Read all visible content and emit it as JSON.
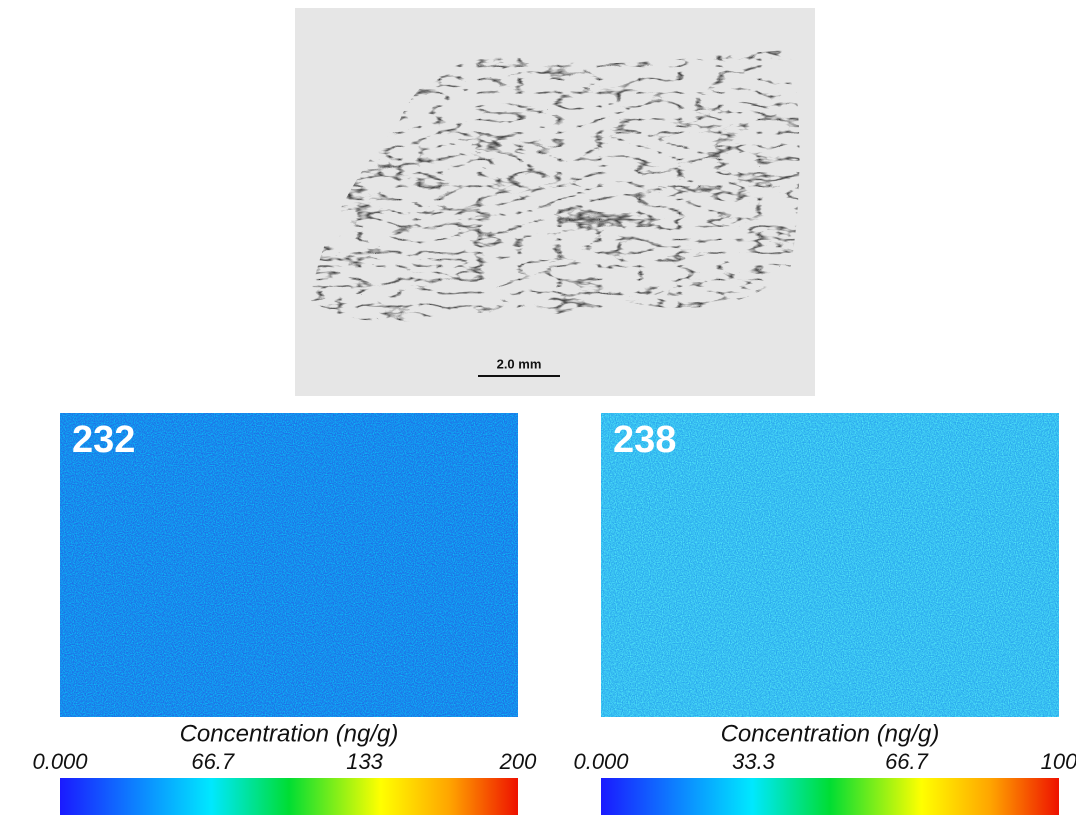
{
  "micrograph": {
    "scale_bar": "2.0 mm"
  },
  "panels": [
    {
      "label": "232",
      "colorbar": {
        "title": "Concentration (ng/g)",
        "lim": [
          0,
          200
        ],
        "ticks": [
          {
            "value": 0,
            "label": "0.000"
          },
          66.7,
          133,
          200
        ]
      }
    },
    {
      "label": "238",
      "colorbar": {
        "title": "Concentration (ng/g)",
        "lim": [
          0,
          100
        ],
        "ticks": [
          {
            "value": 0,
            "label": "0.000"
          },
          33.3,
          66.7,
          100
        ]
      }
    }
  ]
}
